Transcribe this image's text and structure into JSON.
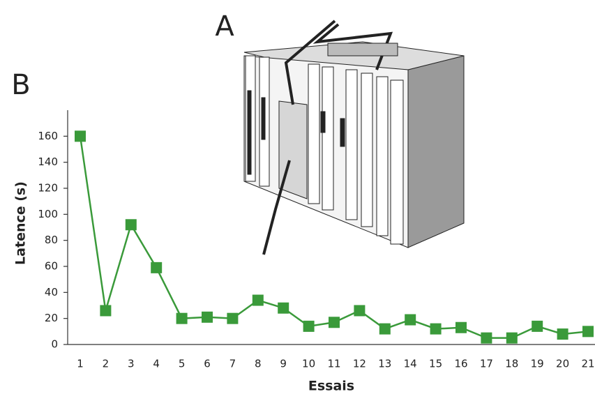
{
  "panel_labels": {
    "illustration": "A",
    "chart": "B"
  },
  "chart_data": {
    "type": "line",
    "x_label": "Essais",
    "y_label": "Latence (s)",
    "categories": [
      "1",
      "2",
      "3",
      "4",
      "5",
      "6",
      "7",
      "8",
      "9",
      "10",
      "11",
      "12",
      "13",
      "14",
      "15",
      "16",
      "17",
      "18",
      "19",
      "20",
      "21"
    ],
    "values": [
      160,
      26,
      92,
      59,
      20,
      21,
      20,
      34,
      28,
      14,
      17,
      26,
      12,
      19,
      12,
      13,
      5,
      5,
      14,
      8,
      10
    ],
    "color": "#3a9a3a",
    "marker": "square",
    "ylim": [
      0,
      180
    ],
    "yticks": [
      0,
      20,
      40,
      60,
      80,
      100,
      120,
      140,
      160
    ],
    "grid": false
  }
}
